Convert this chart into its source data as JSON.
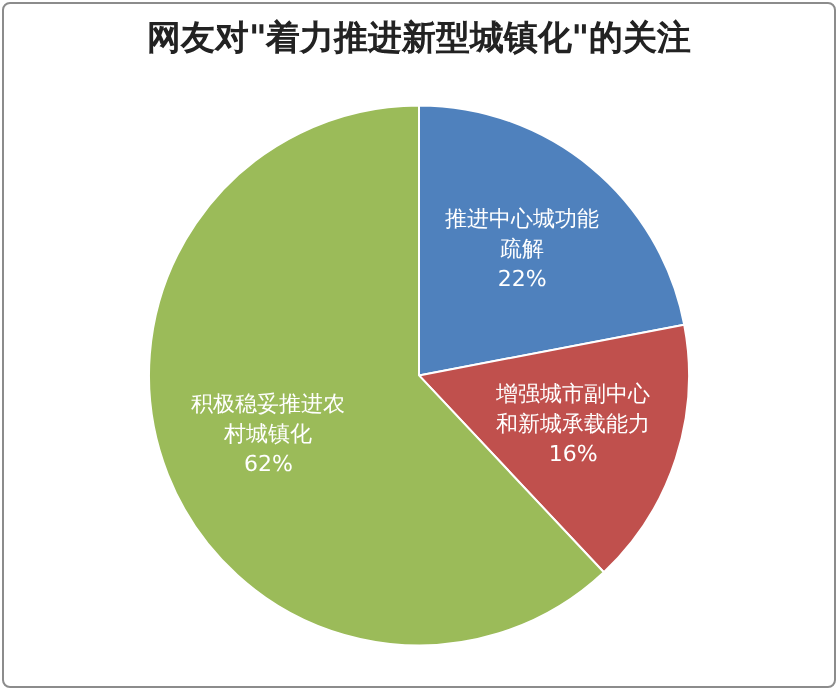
{
  "chart_data": {
    "type": "pie",
    "title": "网友对\"着力推进新型城镇化\"的关注",
    "categories": [
      "推进中心城功能疏解",
      "增强城市副中心和新城承载能力",
      "积极稳妥推进农村城镇化"
    ],
    "values": [
      22,
      16,
      62
    ],
    "value_labels": [
      "22%",
      "16%",
      "62%"
    ],
    "colors": [
      "#4f81bd",
      "#c0504d",
      "#9bbb59"
    ],
    "legend": false
  }
}
